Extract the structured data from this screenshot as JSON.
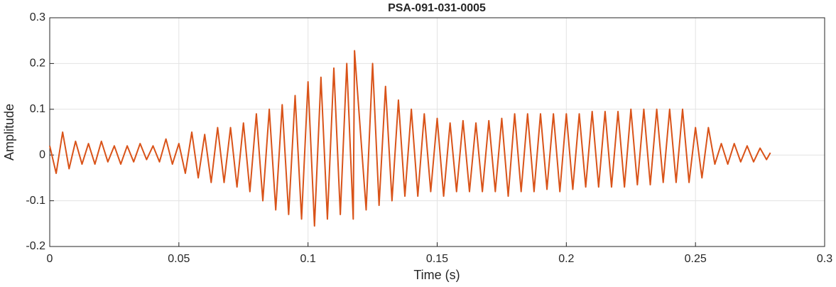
{
  "chart_data": {
    "type": "line",
    "title": "PSA-091-031-0005",
    "xlabel": "Time (s)",
    "ylabel": "Amplitude",
    "x": [
      0,
      0.0025,
      0.005,
      0.0075,
      0.01,
      0.0125,
      0.015,
      0.0175,
      0.02,
      0.0225,
      0.025,
      0.0275,
      0.03,
      0.0325,
      0.035,
      0.0375,
      0.04,
      0.0425,
      0.045,
      0.0475,
      0.05,
      0.0525,
      0.055,
      0.0575,
      0.06,
      0.0625,
      0.065,
      0.0675,
      0.07,
      0.0725,
      0.075,
      0.0775,
      0.08,
      0.0825,
      0.085,
      0.0875,
      0.09,
      0.0925,
      0.095,
      0.0975,
      0.1,
      0.1025,
      0.105,
      0.1075,
      0.11,
      0.1125,
      0.115,
      0.1175,
      0.118,
      0.1225,
      0.125,
      0.1275,
      0.13,
      0.1325,
      0.135,
      0.1375,
      0.14,
      0.1425,
      0.145,
      0.1475,
      0.15,
      0.1525,
      0.155,
      0.1575,
      0.16,
      0.1625,
      0.165,
      0.1675,
      0.17,
      0.1725,
      0.175,
      0.1775,
      0.18,
      0.1825,
      0.185,
      0.1875,
      0.19,
      0.1925,
      0.195,
      0.1975,
      0.2,
      0.2025,
      0.205,
      0.2075,
      0.21,
      0.2125,
      0.215,
      0.2175,
      0.22,
      0.2225,
      0.225,
      0.2275,
      0.23,
      0.2325,
      0.235,
      0.2375,
      0.24,
      0.2425,
      0.245,
      0.2475,
      0.25,
      0.2525,
      0.255,
      0.2575,
      0.26,
      0.2625,
      0.265,
      0.2675,
      0.27,
      0.2725,
      0.275,
      0.2775,
      0.279
    ],
    "series": [
      {
        "color": "#d95319",
        "values": [
          0.02,
          -0.04,
          0.05,
          -0.03,
          0.03,
          -0.02,
          0.025,
          -0.02,
          0.03,
          -0.015,
          0.02,
          -0.02,
          0.02,
          -0.015,
          0.025,
          -0.01,
          0.02,
          -0.015,
          0.035,
          -0.02,
          0.025,
          -0.04,
          0.05,
          -0.05,
          0.045,
          -0.06,
          0.06,
          -0.06,
          0.06,
          -0.07,
          0.07,
          -0.08,
          0.09,
          -0.1,
          0.1,
          -0.12,
          0.11,
          -0.13,
          0.13,
          -0.14,
          0.16,
          -0.155,
          0.17,
          -0.14,
          0.19,
          -0.13,
          0.2,
          -0.14,
          0.228,
          -0.12,
          0.2,
          -0.11,
          0.15,
          -0.1,
          0.12,
          -0.09,
          0.1,
          -0.09,
          0.09,
          -0.08,
          0.08,
          -0.09,
          0.07,
          -0.08,
          0.075,
          -0.08,
          0.07,
          -0.08,
          0.075,
          -0.08,
          0.08,
          -0.09,
          0.09,
          -0.08,
          0.09,
          -0.08,
          0.09,
          -0.075,
          0.09,
          -0.08,
          0.09,
          -0.075,
          0.09,
          -0.07,
          0.095,
          -0.07,
          0.095,
          -0.07,
          0.095,
          -0.07,
          0.1,
          -0.065,
          0.1,
          -0.065,
          0.1,
          -0.06,
          0.1,
          -0.06,
          0.1,
          -0.06,
          0.06,
          -0.05,
          0.06,
          -0.02,
          0.025,
          -0.02,
          0.025,
          -0.015,
          0.02,
          -0.015,
          0.015,
          -0.01,
          0.005
        ]
      }
    ],
    "xlim": [
      0,
      0.3
    ],
    "ylim": [
      -0.2,
      0.3
    ],
    "xticks": [
      0,
      0.05,
      0.1,
      0.15,
      0.2,
      0.25,
      0.3
    ],
    "yticks": [
      -0.2,
      -0.1,
      0,
      0.1,
      0.2,
      0.3
    ],
    "grid": true
  }
}
